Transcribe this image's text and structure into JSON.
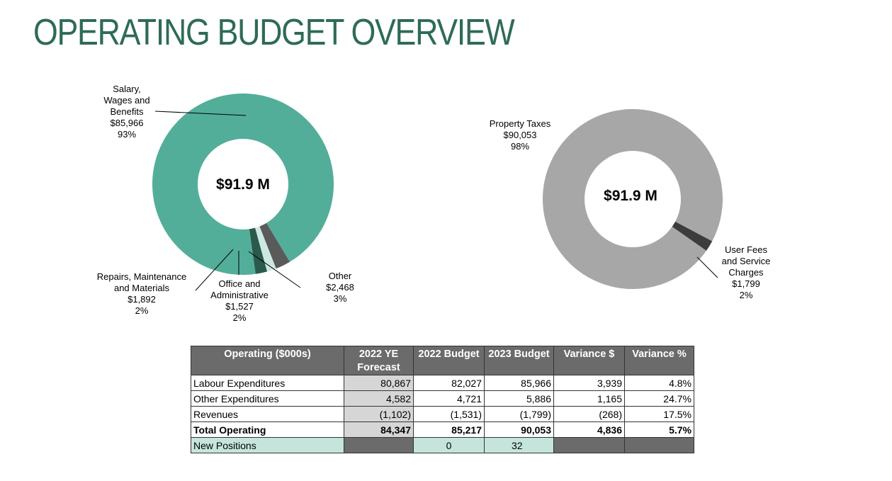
{
  "page": {
    "title": "OPERATING BUDGET OVERVIEW",
    "colors": {
      "title": "#2e6b57",
      "header_bg": "#6b6b6b",
      "forecast_col_bg": "#d6d6d6",
      "new_positions_bg": "#c5e5dc",
      "dark_cell_bg": "#6b6b6b"
    }
  },
  "chart_data": [
    {
      "type": "pie",
      "variant": "donut",
      "center_label": "$91.9 M",
      "slices": [
        {
          "label": [
            "Salary,",
            "Wages and",
            "Benefits"
          ],
          "value_text": "$85,966",
          "value": 85966,
          "pct": "93%",
          "color": "#52ae99"
        },
        {
          "label": [
            "Other"
          ],
          "value_text": "$2,468",
          "value": 2468,
          "pct": "3%",
          "color": "#5a5a5a"
        },
        {
          "label": [
            "Office and",
            "Administrative"
          ],
          "value_text": "$1,527",
          "value": 1527,
          "pct": "2%",
          "color": "#cde8e1"
        },
        {
          "label": [
            "Repairs, Maintenance",
            "and Materials"
          ],
          "value_text": "$1,892",
          "value": 1892,
          "pct": "2%",
          "color": "#2a5a4c"
        }
      ]
    },
    {
      "type": "pie",
      "variant": "donut",
      "center_label": "$91.9 M",
      "slices": [
        {
          "label": [
            "Property Taxes"
          ],
          "value_text": "$90,053",
          "value": 90053,
          "pct": "98%",
          "color": "#a7a7a7"
        },
        {
          "label": [
            "User Fees",
            "and Service",
            "Charges"
          ],
          "value_text": "$1,799",
          "value": 1799,
          "pct": "2%",
          "color": "#3c3c3c"
        }
      ]
    }
  ],
  "table": {
    "headers": [
      "Operating ($000s)",
      "2022 YE Forecast",
      "2022 Budget",
      "2023 Budget",
      "Variance $",
      "Variance %"
    ],
    "rows": [
      {
        "label": "Labour Expenditures",
        "cells": [
          "80,867",
          "82,027",
          "85,966",
          "3,939",
          "4.8%"
        ]
      },
      {
        "label": "Other Expenditures",
        "cells": [
          "4,582",
          "4,721",
          "5,886",
          "1,165",
          "24.7%"
        ]
      },
      {
        "label": "Revenues",
        "cells": [
          "(1,102)",
          "(1,531)",
          "(1,799)",
          "(268)",
          "17.5%"
        ]
      },
      {
        "label": "Total Operating",
        "cells": [
          "84,347",
          "85,217",
          "90,053",
          "4,836",
          "5.7%"
        ],
        "total": true
      }
    ],
    "new_positions": {
      "label": "New Positions",
      "budget_2022": "0",
      "budget_2023": "32"
    }
  }
}
